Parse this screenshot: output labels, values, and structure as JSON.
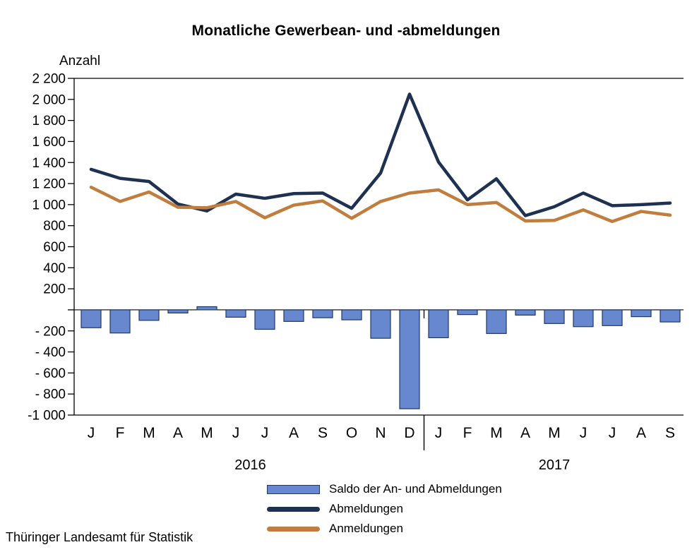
{
  "title": "Monatliche Gewerbean- und -abmeldungen",
  "y_axis_label": "Anzahl",
  "footer": "Thüringer Landesamt für Statistik",
  "chart_data": {
    "type": "bar+line combo",
    "months": [
      "J",
      "F",
      "M",
      "A",
      "M",
      "J",
      "J",
      "A",
      "S",
      "O",
      "N",
      "D",
      "J",
      "F",
      "M",
      "A",
      "M",
      "J",
      "J",
      "A",
      "S"
    ],
    "year_groups": [
      {
        "label": "2016",
        "count": 12
      },
      {
        "label": "2017",
        "count": 9
      }
    ],
    "ylim": [
      -1000,
      2200
    ],
    "ytick_step": 200,
    "zero_tick_label": "",
    "grid": false,
    "legend_position": "bottom",
    "series": [
      {
        "name": "Saldo der An- und Abmeldungen",
        "type": "bar",
        "fill": "#6787ce",
        "stroke": "#1f3864",
        "values": [
          -170,
          -220,
          -100,
          -30,
          30,
          -70,
          -185,
          -110,
          -75,
          -95,
          -270,
          -940,
          -265,
          -45,
          -225,
          -50,
          -130,
          -160,
          -150,
          -65,
          -115
        ]
      },
      {
        "name": "Abmeldungen",
        "type": "line",
        "color": "#1f3150",
        "values": [
          1335,
          1250,
          1220,
          1005,
          940,
          1100,
          1060,
          1105,
          1110,
          965,
          1300,
          2050,
          1405,
          1045,
          1245,
          895,
          980,
          1110,
          990,
          1000,
          1015
        ]
      },
      {
        "name": "Anmeldungen",
        "type": "line",
        "color": "#c17d3e",
        "values": [
          1165,
          1030,
          1120,
          975,
          970,
          1030,
          875,
          995,
          1035,
          870,
          1030,
          1110,
          1140,
          1000,
          1020,
          845,
          850,
          950,
          840,
          935,
          900
        ]
      }
    ]
  }
}
